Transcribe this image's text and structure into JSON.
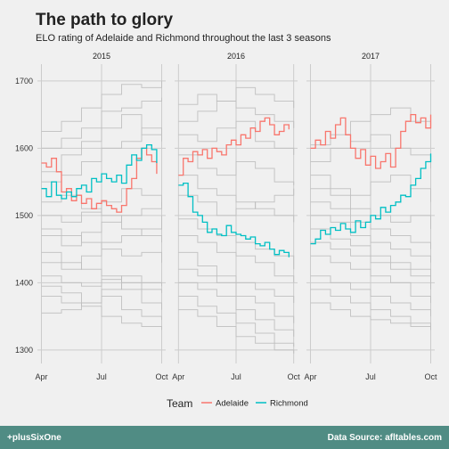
{
  "chart_data": {
    "type": "line",
    "title": "The path to glory",
    "subtitle": "ELO rating of Adelaide and Richmond throughout the last 3 seasons",
    "facets": [
      "2015",
      "2016",
      "2017"
    ],
    "x_tick_labels": [
      "Apr",
      "Jul",
      "Oct"
    ],
    "x_ticks": [
      0,
      3,
      6
    ],
    "xlim": [
      -0.2,
      6.2
    ],
    "ylim": [
      1280,
      1725
    ],
    "y_ticks": [
      1300,
      1400,
      1500,
      1600,
      1700
    ],
    "grid": true,
    "step": true,
    "legend": {
      "title": "Team",
      "position": "bottom",
      "entries": [
        "Adelaide",
        "Richmond"
      ]
    },
    "colors": {
      "Adelaide": "#F8766D",
      "Richmond": "#00BFC4",
      "other_teams": "#BDBDBD",
      "grid": "#CCCCCC",
      "background": "#F0F0F0",
      "footer": "#508C84"
    },
    "series": [
      {
        "facet": "2015",
        "name": "Adelaide",
        "x": [
          0,
          0.25,
          0.5,
          0.75,
          1.0,
          1.25,
          1.5,
          1.75,
          2.0,
          2.25,
          2.5,
          2.75,
          3.0,
          3.25,
          3.5,
          3.75,
          4.0,
          4.25,
          4.5,
          4.75,
          5.0,
          5.25,
          5.5,
          5.75
        ],
        "y": [
          1578,
          1572,
          1585,
          1565,
          1535,
          1540,
          1522,
          1530,
          1518,
          1525,
          1510,
          1518,
          1522,
          1515,
          1510,
          1505,
          1515,
          1540,
          1555,
          1585,
          1600,
          1590,
          1580,
          1562
        ]
      },
      {
        "facet": "2015",
        "name": "Richmond",
        "x": [
          0,
          0.25,
          0.5,
          0.75,
          1.0,
          1.25,
          1.5,
          1.75,
          2.0,
          2.25,
          2.5,
          2.75,
          3.0,
          3.25,
          3.5,
          3.75,
          4.0,
          4.25,
          4.5,
          4.75,
          5.0,
          5.25,
          5.5,
          5.75
        ],
        "y": [
          1540,
          1528,
          1550,
          1530,
          1525,
          1535,
          1528,
          1540,
          1545,
          1535,
          1555,
          1550,
          1562,
          1555,
          1550,
          1560,
          1548,
          1575,
          1590,
          1582,
          1600,
          1605,
          1598,
          1578
        ]
      },
      {
        "facet": "2016",
        "name": "Adelaide",
        "x": [
          0,
          0.25,
          0.5,
          0.75,
          1.0,
          1.25,
          1.5,
          1.75,
          2.0,
          2.25,
          2.5,
          2.75,
          3.0,
          3.25,
          3.5,
          3.75,
          4.0,
          4.25,
          4.5,
          4.75,
          5.0,
          5.25,
          5.5,
          5.75
        ],
        "y": [
          1560,
          1585,
          1580,
          1595,
          1590,
          1598,
          1585,
          1600,
          1595,
          1590,
          1605,
          1612,
          1605,
          1620,
          1615,
          1630,
          1625,
          1640,
          1645,
          1635,
          1620,
          1625,
          1635,
          1628
        ]
      },
      {
        "facet": "2016",
        "name": "Richmond",
        "x": [
          0,
          0.25,
          0.5,
          0.75,
          1.0,
          1.25,
          1.5,
          1.75,
          2.0,
          2.25,
          2.5,
          2.75,
          3.0,
          3.25,
          3.5,
          3.75,
          4.0,
          4.25,
          4.5,
          4.75,
          5.0,
          5.25,
          5.5,
          5.75
        ],
        "y": [
          1545,
          1548,
          1528,
          1505,
          1500,
          1490,
          1475,
          1480,
          1472,
          1470,
          1485,
          1475,
          1472,
          1470,
          1465,
          1468,
          1458,
          1455,
          1460,
          1450,
          1442,
          1448,
          1445,
          1438
        ]
      },
      {
        "facet": "2017",
        "name": "Adelaide",
        "x": [
          0,
          0.25,
          0.5,
          0.75,
          1.0,
          1.25,
          1.5,
          1.75,
          2.0,
          2.25,
          2.5,
          2.75,
          3.0,
          3.25,
          3.5,
          3.75,
          4.0,
          4.25,
          4.5,
          4.75,
          5.0,
          5.25,
          5.5,
          5.75,
          6.0
        ],
        "y": [
          1600,
          1612,
          1605,
          1625,
          1615,
          1635,
          1645,
          1620,
          1600,
          1585,
          1598,
          1575,
          1588,
          1570,
          1580,
          1592,
          1572,
          1600,
          1625,
          1640,
          1650,
          1638,
          1645,
          1630,
          1650
        ]
      },
      {
        "facet": "2017",
        "name": "Richmond",
        "x": [
          0,
          0.25,
          0.5,
          0.75,
          1.0,
          1.25,
          1.5,
          1.75,
          2.0,
          2.25,
          2.5,
          2.75,
          3.0,
          3.25,
          3.5,
          3.75,
          4.0,
          4.25,
          4.5,
          4.75,
          5.0,
          5.25,
          5.5,
          5.75,
          6.0
        ],
        "y": [
          1458,
          1465,
          1478,
          1472,
          1482,
          1478,
          1488,
          1480,
          1475,
          1492,
          1482,
          1490,
          1500,
          1495,
          1512,
          1505,
          1515,
          1520,
          1530,
          1528,
          1545,
          1555,
          1570,
          1580,
          1592
        ]
      }
    ],
    "background_series": [
      {
        "facet": "2015",
        "x": [
          0,
          1,
          2,
          3,
          4,
          5,
          6
        ],
        "y": [
          1625,
          1640,
          1660,
          1680,
          1695,
          1690,
          1700
        ]
      },
      {
        "facet": "2015",
        "x": [
          0,
          1,
          2,
          3,
          4,
          5,
          6
        ],
        "y": [
          1600,
          1615,
          1630,
          1655,
          1660,
          1670,
          1675
        ]
      },
      {
        "facet": "2015",
        "x": [
          0,
          1,
          2,
          3,
          4,
          5,
          6
        ],
        "y": [
          1565,
          1590,
          1610,
          1630,
          1650,
          1620,
          1610
        ]
      },
      {
        "facet": "2015",
        "x": [
          0,
          1,
          2,
          3,
          4,
          5,
          6
        ],
        "y": [
          1550,
          1560,
          1580,
          1600,
          1610,
          1630,
          1620
        ]
      },
      {
        "facet": "2015",
        "x": [
          0,
          1,
          2,
          3,
          4,
          5,
          6
        ],
        "y": [
          1520,
          1530,
          1510,
          1500,
          1480,
          1470,
          1460
        ]
      },
      {
        "facet": "2015",
        "x": [
          0,
          1,
          2,
          3,
          4,
          5,
          6
        ],
        "y": [
          1500,
          1490,
          1505,
          1520,
          1540,
          1530,
          1515
        ]
      },
      {
        "facet": "2015",
        "x": [
          0,
          1,
          2,
          3,
          4,
          5,
          6
        ],
        "y": [
          1480,
          1470,
          1460,
          1450,
          1440,
          1445,
          1430
        ]
      },
      {
        "facet": "2015",
        "x": [
          0,
          1,
          2,
          3,
          4,
          5,
          6
        ],
        "y": [
          1470,
          1455,
          1475,
          1490,
          1500,
          1510,
          1520
        ]
      },
      {
        "facet": "2015",
        "x": [
          0,
          1,
          2,
          3,
          4,
          5,
          6
        ],
        "y": [
          1445,
          1430,
          1420,
          1410,
          1400,
          1390,
          1385
        ]
      },
      {
        "facet": "2015",
        "x": [
          0,
          1,
          2,
          3,
          4,
          5,
          6
        ],
        "y": [
          1430,
          1420,
          1440,
          1460,
          1470,
          1480,
          1500
        ]
      },
      {
        "facet": "2015",
        "x": [
          0,
          1,
          2,
          3,
          4,
          5,
          6
        ],
        "y": [
          1410,
          1400,
          1395,
          1405,
          1390,
          1370,
          1360
        ]
      },
      {
        "facet": "2015",
        "x": [
          0,
          1,
          2,
          3,
          4,
          5,
          6
        ],
        "y": [
          1395,
          1385,
          1370,
          1380,
          1360,
          1350,
          1345
        ]
      },
      {
        "facet": "2015",
        "x": [
          0,
          1,
          2,
          3,
          4,
          5,
          6
        ],
        "y": [
          1380,
          1370,
          1365,
          1350,
          1340,
          1335,
          1330
        ]
      },
      {
        "facet": "2015",
        "x": [
          0,
          1,
          2,
          3,
          4,
          5,
          6
        ],
        "y": [
          1355,
          1360,
          1370,
          1390,
          1410,
          1400,
          1395
        ]
      },
      {
        "facet": "2016",
        "x": [
          0,
          1,
          2,
          3,
          4,
          5,
          6
        ],
        "y": [
          1665,
          1680,
          1670,
          1690,
          1680,
          1670,
          1660
        ]
      },
      {
        "facet": "2016",
        "x": [
          0,
          1,
          2,
          3,
          4,
          5,
          6
        ],
        "y": [
          1640,
          1655,
          1670,
          1660,
          1650,
          1640,
          1630
        ]
      },
      {
        "facet": "2016",
        "x": [
          0,
          1,
          2,
          3,
          4,
          5,
          6
        ],
        "y": [
          1620,
          1610,
          1630,
          1640,
          1610,
          1600,
          1590
        ]
      },
      {
        "facet": "2016",
        "x": [
          0,
          1,
          2,
          3,
          4,
          5,
          6
        ],
        "y": [
          1590,
          1570,
          1560,
          1580,
          1570,
          1550,
          1545
        ]
      },
      {
        "facet": "2016",
        "x": [
          0,
          1,
          2,
          3,
          4,
          5,
          6
        ],
        "y": [
          1560,
          1540,
          1530,
          1520,
          1510,
          1500,
          1490
        ]
      },
      {
        "facet": "2016",
        "x": [
          0,
          1,
          2,
          3,
          4,
          5,
          6
        ],
        "y": [
          1530,
          1520,
          1500,
          1510,
          1520,
          1530,
          1540
        ]
      },
      {
        "facet": "2016",
        "x": [
          0,
          1,
          2,
          3,
          4,
          5,
          6
        ],
        "y": [
          1495,
          1480,
          1470,
          1460,
          1450,
          1440,
          1420
        ]
      },
      {
        "facet": "2016",
        "x": [
          0,
          1,
          2,
          3,
          4,
          5,
          6
        ],
        "y": [
          1470,
          1460,
          1445,
          1440,
          1430,
          1410,
          1400
        ]
      },
      {
        "facet": "2016",
        "x": [
          0,
          1,
          2,
          3,
          4,
          5,
          6
        ],
        "y": [
          1445,
          1425,
          1410,
          1400,
          1390,
          1380,
          1370
        ]
      },
      {
        "facet": "2016",
        "x": [
          0,
          1,
          2,
          3,
          4,
          5,
          6
        ],
        "y": [
          1420,
          1410,
          1400,
          1380,
          1370,
          1350,
          1340
        ]
      },
      {
        "facet": "2016",
        "x": [
          0,
          1,
          2,
          3,
          4,
          5,
          6
        ],
        "y": [
          1400,
          1390,
          1380,
          1360,
          1345,
          1330,
          1320
        ]
      },
      {
        "facet": "2016",
        "x": [
          0,
          1,
          2,
          3,
          4,
          5,
          6
        ],
        "y": [
          1380,
          1365,
          1355,
          1340,
          1325,
          1310,
          1305
        ]
      },
      {
        "facet": "2016",
        "x": [
          0,
          1,
          2,
          3,
          4,
          5,
          6
        ],
        "y": [
          1360,
          1350,
          1335,
          1320,
          1310,
          1300,
          1295
        ]
      },
      {
        "facet": "2017",
        "x": [
          0,
          1,
          2,
          3,
          4,
          5,
          6
        ],
        "y": [
          1605,
          1620,
          1640,
          1650,
          1660,
          1640,
          1630
        ]
      },
      {
        "facet": "2017",
        "x": [
          0,
          1,
          2,
          3,
          4,
          5,
          6
        ],
        "y": [
          1580,
          1600,
          1610,
          1620,
          1600,
          1590,
          1570
        ]
      },
      {
        "facet": "2017",
        "x": [
          0,
          1,
          2,
          3,
          4,
          5,
          6
        ],
        "y": [
          1560,
          1540,
          1530,
          1550,
          1560,
          1540,
          1520
        ]
      },
      {
        "facet": "2017",
        "x": [
          0,
          1,
          2,
          3,
          4,
          5,
          6
        ],
        "y": [
          1540,
          1530,
          1510,
          1500,
          1490,
          1500,
          1480
        ]
      },
      {
        "facet": "2017",
        "x": [
          0,
          1,
          2,
          3,
          4,
          5,
          6
        ],
        "y": [
          1520,
          1510,
          1490,
          1480,
          1470,
          1460,
          1450
        ]
      },
      {
        "facet": "2017",
        "x": [
          0,
          1,
          2,
          3,
          4,
          5,
          6
        ],
        "y": [
          1500,
          1490,
          1470,
          1460,
          1450,
          1440,
          1430
        ]
      },
      {
        "facet": "2017",
        "x": [
          0,
          1,
          2,
          3,
          4,
          5,
          6
        ],
        "y": [
          1480,
          1465,
          1455,
          1440,
          1430,
          1420,
          1400
        ]
      },
      {
        "facet": "2017",
        "x": [
          0,
          1,
          2,
          3,
          4,
          5,
          6
        ],
        "y": [
          1460,
          1450,
          1440,
          1430,
          1420,
          1410,
          1390
        ]
      },
      {
        "facet": "2017",
        "x": [
          0,
          1,
          2,
          3,
          4,
          5,
          6
        ],
        "y": [
          1440,
          1430,
          1420,
          1410,
          1400,
          1380,
          1370
        ]
      },
      {
        "facet": "2017",
        "x": [
          0,
          1,
          2,
          3,
          4,
          5,
          6
        ],
        "y": [
          1410,
          1400,
          1390,
          1380,
          1370,
          1360,
          1350
        ]
      },
      {
        "facet": "2017",
        "x": [
          0,
          1,
          2,
          3,
          4,
          5,
          6
        ],
        "y": [
          1390,
          1380,
          1370,
          1360,
          1350,
          1340,
          1330
        ]
      },
      {
        "facet": "2017",
        "x": [
          0,
          1,
          2,
          3,
          4,
          5,
          6
        ],
        "y": [
          1370,
          1360,
          1350,
          1345,
          1340,
          1335,
          1330
        ]
      }
    ]
  },
  "footer": {
    "left": "+plusSixOne",
    "right": "Data Source: afltables.com"
  }
}
